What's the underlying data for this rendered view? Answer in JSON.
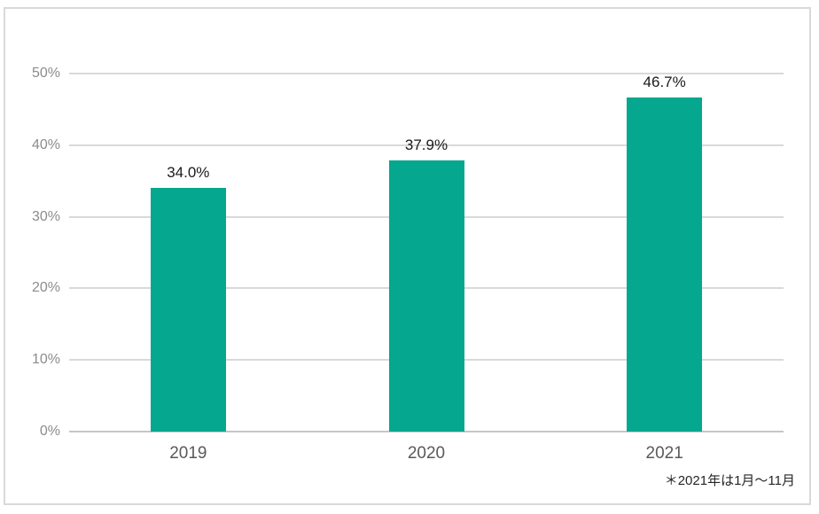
{
  "chart_data": {
    "type": "bar",
    "title": "",
    "categories": [
      "2019",
      "2020",
      "2021"
    ],
    "values": [
      34.0,
      37.9,
      46.7
    ],
    "data_labels": [
      "34.0%",
      "37.9%",
      "46.7%"
    ],
    "xlabel": "",
    "ylabel": "",
    "ylim": [
      0,
      50
    ],
    "y_ticks": {
      "values": [
        0,
        10,
        20,
        30,
        40,
        50
      ],
      "labels": [
        "0%",
        "10%",
        "20%",
        "30%",
        "40%",
        "50%"
      ]
    },
    "grid": true,
    "legend": "none",
    "footnote": "＊2021年は1月～11月",
    "colors": {
      "bar": "#05A78F",
      "gridline": "#D9D9D9",
      "axis_line": "#C6C6C6",
      "y_tick_text": "#8C8C8C",
      "x_tick_text": "#595959",
      "data_label_text": "#1A1A1A",
      "footnote_text": "#262626",
      "frame_border": "#D9D9D9",
      "background": "#FFFFFF"
    }
  }
}
